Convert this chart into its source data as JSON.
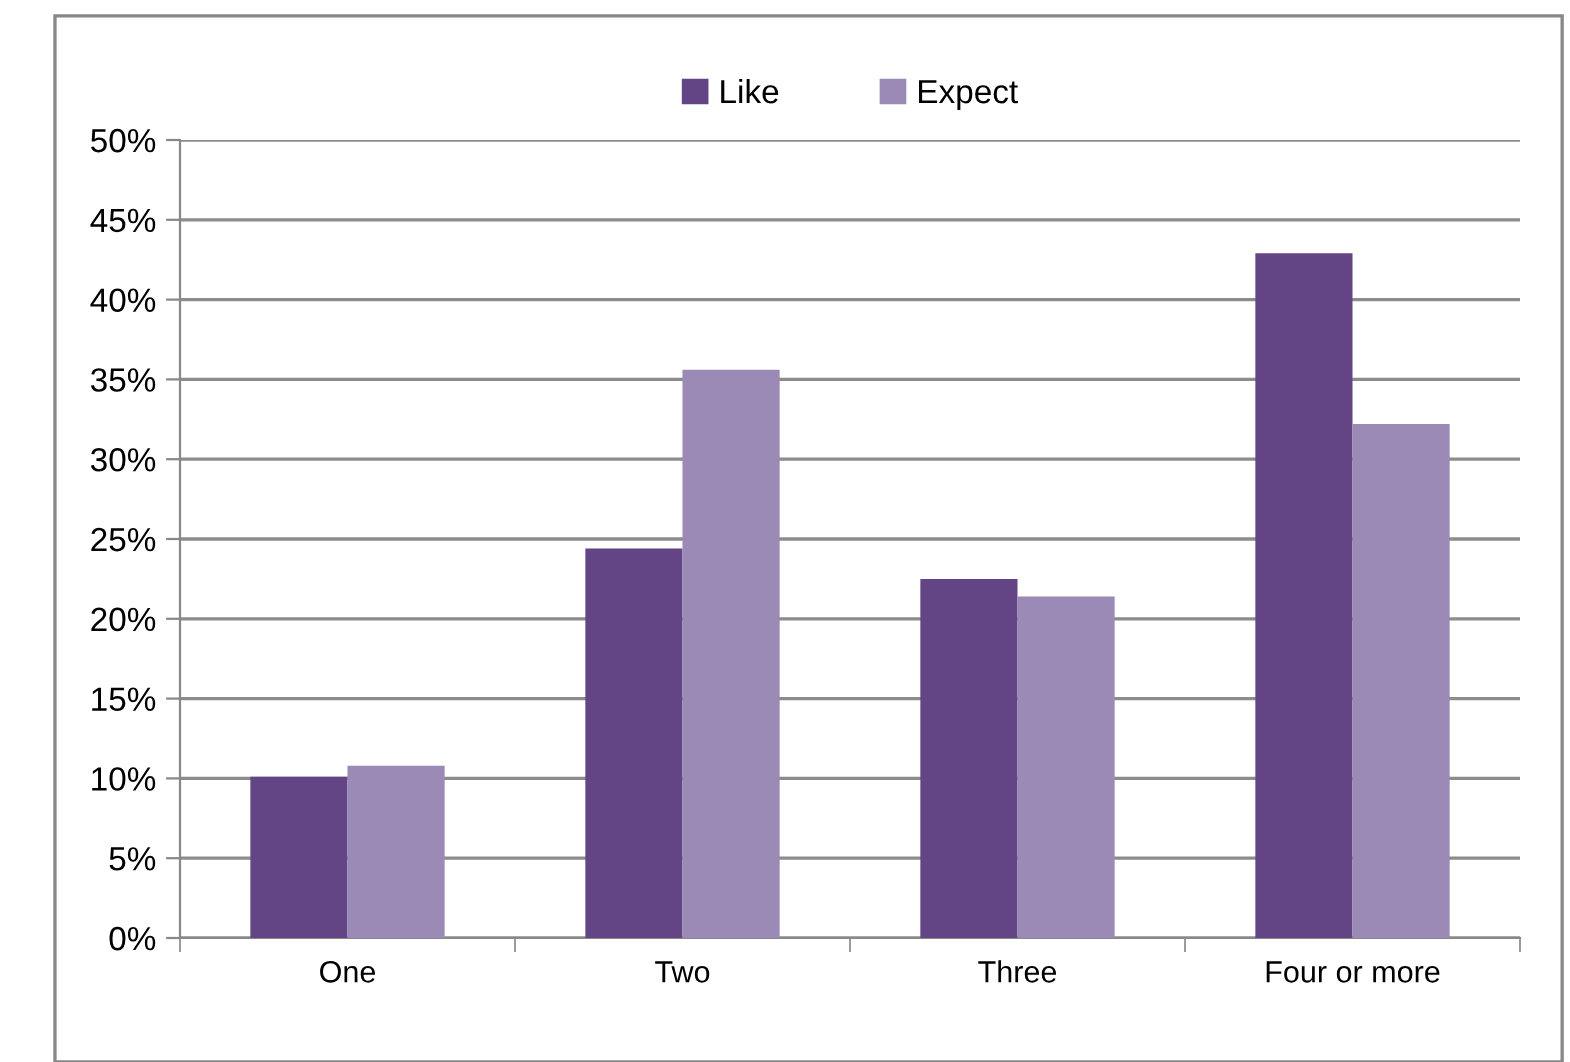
{
  "chart_data": {
    "type": "bar",
    "categories": [
      "One",
      "Two",
      "Three",
      "Four or more"
    ],
    "series": [
      {
        "name": "Like",
        "color": "#634585",
        "values": [
          10.1,
          24.4,
          22.5,
          42.9
        ]
      },
      {
        "name": "Expect",
        "color": "#9b8ab5",
        "values": [
          10.8,
          35.6,
          21.4,
          32.2
        ]
      }
    ],
    "ylim": [
      0,
      50
    ],
    "yticks": [
      {
        "value": 0,
        "label": "0%"
      },
      {
        "value": 5,
        "label": "5%"
      },
      {
        "value": 10,
        "label": "10%"
      },
      {
        "value": 15,
        "label": "15%"
      },
      {
        "value": 20,
        "label": "20%"
      },
      {
        "value": 25,
        "label": "25%"
      },
      {
        "value": 30,
        "label": "30%"
      },
      {
        "value": 35,
        "label": "35%"
      },
      {
        "value": 40,
        "label": "40%"
      },
      {
        "value": 45,
        "label": "45%"
      },
      {
        "value": 50,
        "label": "50%"
      }
    ],
    "grid": "y",
    "legend": "top"
  }
}
